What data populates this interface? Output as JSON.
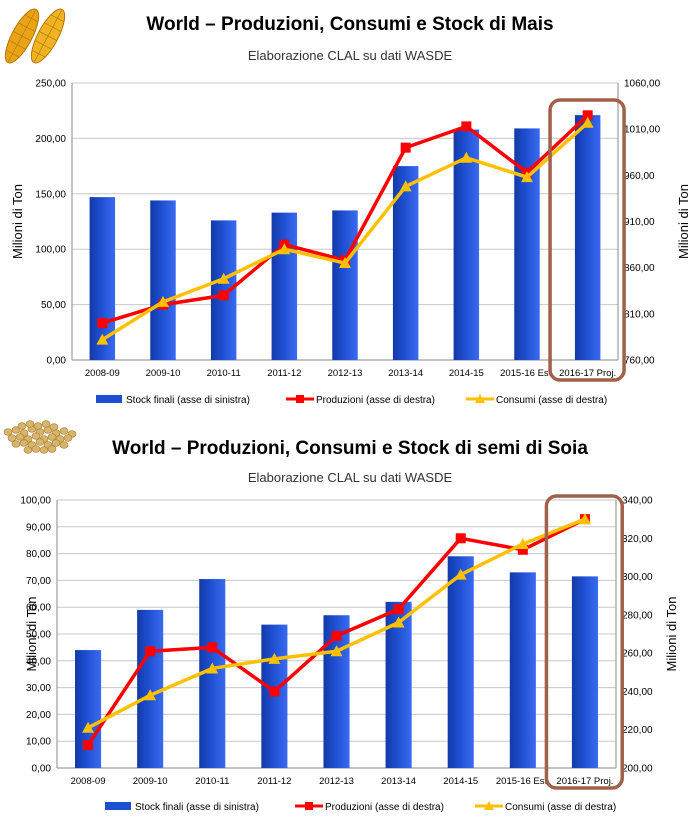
{
  "charts": [
    {
      "id": "mais",
      "title": "World – Produzioni, Consumi e Stock di Mais",
      "subtitle": "Elaborazione CLAL su dati WASDE",
      "icon": "corn-cobs-icon",
      "colors": {
        "bars": "#1f4fd1",
        "production": "#ff0000",
        "consumption": "#ffc000",
        "highlight": "#a0604a"
      }
    },
    {
      "id": "soia",
      "title": "World – Produzioni, Consumi e Stock di semi di Soia",
      "subtitle": "Elaborazione CLAL su dati WASDE",
      "icon": "soybeans-icon",
      "colors": {
        "bars": "#1f4fd1",
        "production": "#ff0000",
        "consumption": "#ffc000",
        "highlight": "#a0604a"
      }
    }
  ],
  "chart_data": [
    {
      "type": "bar",
      "categories": [
        "2008-09",
        "2009-10",
        "2010-11",
        "2011-12",
        "2012-13",
        "2013-14",
        "2014-15",
        "2015-16 Est.",
        "2016-17 Proj."
      ],
      "series": [
        {
          "name": "Stock finali (asse di sinistra)",
          "type": "bar",
          "axis": "left",
          "values": [
            147,
            144,
            126,
            133,
            135,
            175,
            208,
            209,
            221
          ]
        },
        {
          "name": "Produzioni (asse di destra)",
          "type": "line",
          "axis": "right",
          "marker": "square",
          "values": [
            800,
            820,
            830,
            885,
            868,
            990,
            1013,
            963,
            1025
          ]
        },
        {
          "name": "Consumi (asse di destra)",
          "type": "line",
          "axis": "right",
          "marker": "triangle",
          "values": [
            782,
            823,
            848,
            880,
            865,
            948,
            979,
            958,
            1017
          ]
        }
      ],
      "ylabel_left": "Milioni di Ton",
      "ylabel_right": "Milioni di Ton",
      "ylim_left": [
        0,
        250
      ],
      "ylim_right": [
        760,
        1060
      ],
      "ticks_left": [
        "0,00",
        "50,00",
        "100,00",
        "150,00",
        "200,00",
        "250,00"
      ],
      "ticks_right": [
        "760,00",
        "810,00",
        "860,00",
        "910,00",
        "960,00",
        "1010,00",
        "1060,00"
      ],
      "grid": true,
      "legend": "bottom",
      "highlight_category": "2016-17 Proj."
    },
    {
      "type": "bar",
      "categories": [
        "2008-09",
        "2009-10",
        "2010-11",
        "2011-12",
        "2012-13",
        "2013-14",
        "2014-15",
        "2015-16 Est.",
        "2016-17 Proj."
      ],
      "series": [
        {
          "name": "Stock finali (asse di sinistra)",
          "type": "bar",
          "axis": "left",
          "values": [
            44,
            59,
            70.5,
            53.5,
            57,
            62,
            79,
            73,
            71.5
          ]
        },
        {
          "name": "Produzioni (asse di destra)",
          "type": "line",
          "axis": "right",
          "marker": "square",
          "values": [
            212,
            261,
            263,
            240,
            269,
            283,
            320,
            314,
            330
          ]
        },
        {
          "name": "Consumi (asse di destra)",
          "type": "line",
          "axis": "right",
          "marker": "triangle",
          "values": [
            221,
            238,
            252,
            257,
            261,
            276,
            301,
            317,
            330
          ]
        }
      ],
      "ylabel_left": "Milioni di Ton",
      "ylabel_right": "Milioni di Ton",
      "ylim_left": [
        0,
        100
      ],
      "ylim_right": [
        200,
        340
      ],
      "ticks_left": [
        "0,00",
        "10,00",
        "20,00",
        "30,00",
        "40,00",
        "50,00",
        "60,00",
        "70,00",
        "80,00",
        "90,00",
        "100,00"
      ],
      "ticks_right": [
        "200,00",
        "220,00",
        "240,00",
        "260,00",
        "280,00",
        "300,00",
        "320,00",
        "340,00"
      ],
      "grid": true,
      "legend": "bottom",
      "highlight_category": "2016-17 Proj."
    }
  ]
}
